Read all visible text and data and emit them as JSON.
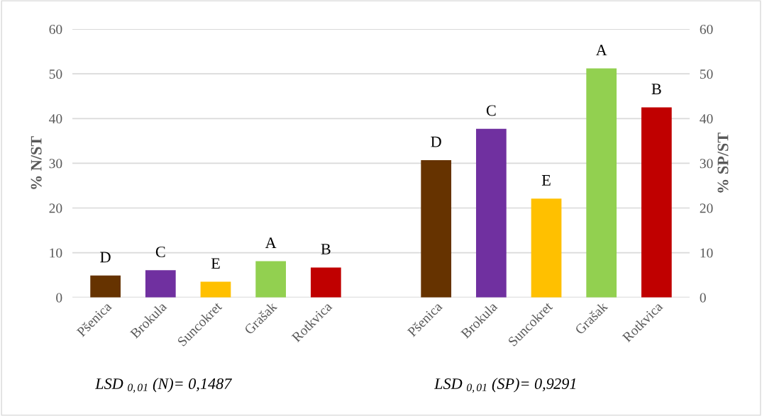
{
  "chart_data": {
    "type": "bar",
    "categories": [
      "Pšenica",
      "Brokula",
      "Suncokret",
      "Grašak",
      "Rotkvica",
      null,
      "Pšenica",
      "Brokula",
      "Suncokret",
      "Grašak",
      "Rotkvica"
    ],
    "series": [
      {
        "colors": [
          "#663300",
          "#7030a0",
          "#ffc000",
          "#92d050",
          "#c00000",
          null,
          null,
          null,
          null,
          null,
          null
        ],
        "values": [
          4.9,
          6.1,
          3.5,
          8.1,
          6.7,
          null,
          null,
          null,
          null,
          null,
          null
        ],
        "value_labels": [
          "D",
          "C",
          "E",
          "A",
          "B",
          null,
          null,
          null,
          null,
          null,
          null
        ]
      },
      {
        "colors": [
          null,
          null,
          null,
          null,
          null,
          null,
          "#663300",
          "#7030a0",
          "#ffc000",
          "#92d050",
          "#c00000"
        ],
        "values": [
          null,
          null,
          null,
          null,
          null,
          null,
          30.7,
          37.7,
          22.1,
          51.2,
          42.5
        ],
        "value_labels": [
          null,
          null,
          null,
          null,
          null,
          null,
          "D",
          "C",
          "E",
          "A",
          "B"
        ]
      }
    ],
    "ylabel": "% N/ST",
    "y2label": "% SP/ST",
    "ylim": [
      0,
      60
    ],
    "yticks": [
      0,
      10,
      20,
      30,
      40,
      50,
      60
    ],
    "y2lim": [
      0,
      60
    ],
    "y2ticks": [
      0,
      10,
      20,
      30,
      40,
      50,
      60
    ],
    "grid": "y",
    "annotations": [
      "LSD $_{0,01}$ (N)= 0,1487",
      "LSD $_{0,01}$ (SP)= 0,9291"
    ]
  }
}
